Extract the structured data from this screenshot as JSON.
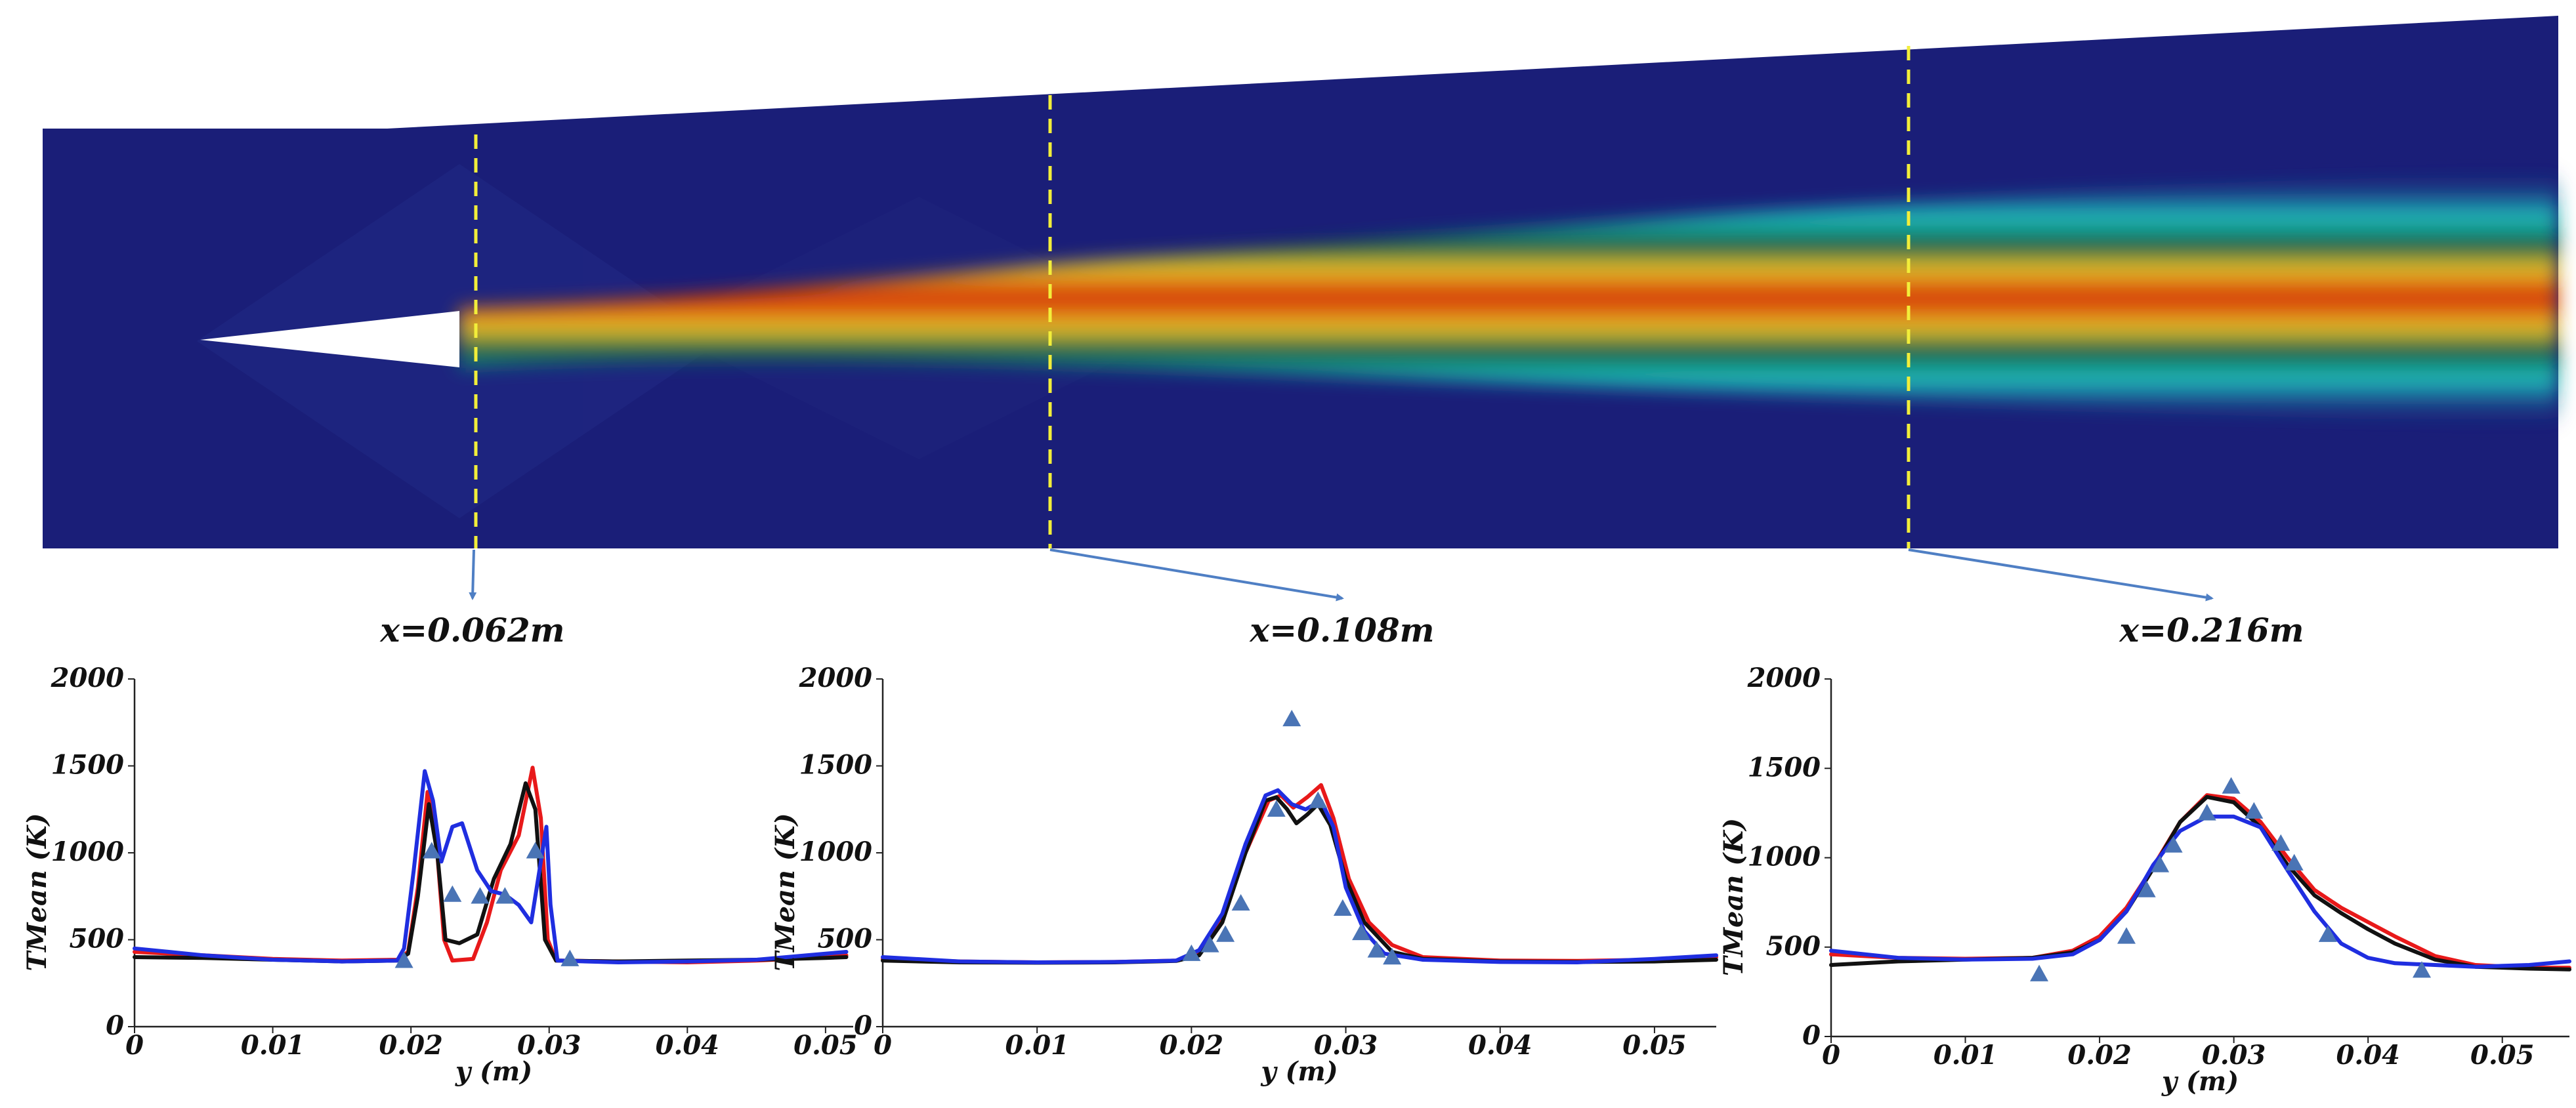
{
  "colors": {
    "background": "#1a1e78",
    "core_hot": "#d52a00",
    "shear_layer": "#1fc2c0",
    "probe_line": "#f2ee3a",
    "arrow": "#4f7fc4",
    "series_red": "#e8191a",
    "series_black": "#111111",
    "series_blue": "#1f2ee0",
    "markers": "#4a74b5"
  },
  "contour": {
    "field": "TMean temperature contour",
    "probe_lines": [
      {
        "label": "x=0.062m"
      },
      {
        "label": "x=0.108m"
      },
      {
        "label": "x=0.216m"
      }
    ]
  },
  "chart_data": [
    {
      "type": "line",
      "title": "x=0.062m",
      "xlabel": "y (m)",
      "ylabel": "TMean (K)",
      "xlim": [
        0,
        0.052
      ],
      "ylim": [
        0,
        2000
      ],
      "xticks": [
        0,
        0.01,
        0.02,
        0.03,
        0.04,
        0.05
      ],
      "xtick_labels": [
        "0",
        "0.01",
        "0.02",
        "0.03",
        "0.04",
        "0.05"
      ],
      "yticks": [
        0,
        500,
        1000,
        1500,
        2000
      ],
      "ytick_labels": [
        "0",
        "500",
        "1000",
        "1500",
        "2000"
      ],
      "series": [
        {
          "name": "red",
          "color": "#e8191a",
          "points": [
            [
              0,
              430
            ],
            [
              0.005,
              410
            ],
            [
              0.01,
              390
            ],
            [
              0.015,
              380
            ],
            [
              0.019,
              385
            ],
            [
              0.0198,
              430
            ],
            [
              0.0205,
              800
            ],
            [
              0.0212,
              1350
            ],
            [
              0.0218,
              1100
            ],
            [
              0.0224,
              500
            ],
            [
              0.023,
              380
            ],
            [
              0.0245,
              390
            ],
            [
              0.0255,
              600
            ],
            [
              0.0265,
              900
            ],
            [
              0.0278,
              1100
            ],
            [
              0.0288,
              1490
            ],
            [
              0.0294,
              1200
            ],
            [
              0.0299,
              500
            ],
            [
              0.0305,
              380
            ],
            [
              0.035,
              375
            ],
            [
              0.04,
              370
            ],
            [
              0.045,
              380
            ],
            [
              0.05,
              400
            ],
            [
              0.0515,
              410
            ]
          ]
        },
        {
          "name": "black",
          "color": "#111111",
          "points": [
            [
              0,
              400
            ],
            [
              0.005,
              395
            ],
            [
              0.01,
              385
            ],
            [
              0.015,
              375
            ],
            [
              0.019,
              380
            ],
            [
              0.0198,
              420
            ],
            [
              0.0205,
              750
            ],
            [
              0.0213,
              1280
            ],
            [
              0.0219,
              1000
            ],
            [
              0.0225,
              500
            ],
            [
              0.0235,
              480
            ],
            [
              0.0248,
              530
            ],
            [
              0.026,
              850
            ],
            [
              0.0272,
              1050
            ],
            [
              0.0283,
              1400
            ],
            [
              0.029,
              1250
            ],
            [
              0.0297,
              500
            ],
            [
              0.0305,
              380
            ],
            [
              0.035,
              375
            ],
            [
              0.04,
              380
            ],
            [
              0.045,
              385
            ],
            [
              0.05,
              395
            ],
            [
              0.0515,
              400
            ]
          ]
        },
        {
          "name": "blue",
          "color": "#1f2ee0",
          "points": [
            [
              0,
              450
            ],
            [
              0.005,
              410
            ],
            [
              0.01,
              385
            ],
            [
              0.015,
              375
            ],
            [
              0.019,
              380
            ],
            [
              0.0195,
              450
            ],
            [
              0.0202,
              900
            ],
            [
              0.021,
              1470
            ],
            [
              0.0216,
              1300
            ],
            [
              0.0222,
              950
            ],
            [
              0.023,
              1150
            ],
            [
              0.0237,
              1170
            ],
            [
              0.0248,
              900
            ],
            [
              0.0258,
              780
            ],
            [
              0.0268,
              760
            ],
            [
              0.0278,
              700
            ],
            [
              0.0287,
              600
            ],
            [
              0.0295,
              1000
            ],
            [
              0.0298,
              1150
            ],
            [
              0.0301,
              700
            ],
            [
              0.0306,
              380
            ],
            [
              0.035,
              370
            ],
            [
              0.04,
              375
            ],
            [
              0.045,
              385
            ],
            [
              0.05,
              420
            ],
            [
              0.0515,
              430
            ]
          ]
        }
      ],
      "markers": [
        [
          0.0195,
          380
        ],
        [
          0.0215,
          1010
        ],
        [
          0.023,
          760
        ],
        [
          0.025,
          750
        ],
        [
          0.0268,
          750
        ],
        [
          0.029,
          1010
        ],
        [
          0.0315,
          390
        ]
      ]
    },
    {
      "type": "line",
      "title": "x=0.108m",
      "xlabel": "y (m)",
      "ylabel": "TMean (K)",
      "xlim": [
        0,
        0.054
      ],
      "ylim": [
        0,
        2000
      ],
      "xticks": [
        0,
        0.01,
        0.02,
        0.03,
        0.04,
        0.05
      ],
      "xtick_labels": [
        "0",
        "0.01",
        "0.02",
        "0.03",
        "0.04",
        "0.05"
      ],
      "yticks": [
        0,
        500,
        1000,
        1500,
        2000
      ],
      "ytick_labels": [
        "0",
        "500",
        "1000",
        "1500",
        "2000"
      ],
      "series": [
        {
          "name": "red",
          "color": "#e8191a",
          "points": [
            [
              0,
              390
            ],
            [
              0.005,
              375
            ],
            [
              0.01,
              370
            ],
            [
              0.015,
              372
            ],
            [
              0.019,
              380
            ],
            [
              0.0205,
              420
            ],
            [
              0.022,
              620
            ],
            [
              0.0235,
              1000
            ],
            [
              0.025,
              1300
            ],
            [
              0.0258,
              1330
            ],
            [
              0.0266,
              1260
            ],
            [
              0.0275,
              1320
            ],
            [
              0.0284,
              1390
            ],
            [
              0.0292,
              1200
            ],
            [
              0.0302,
              850
            ],
            [
              0.0315,
              600
            ],
            [
              0.033,
              470
            ],
            [
              0.035,
              400
            ],
            [
              0.04,
              380
            ],
            [
              0.045,
              378
            ],
            [
              0.05,
              385
            ],
            [
              0.054,
              400
            ]
          ]
        },
        {
          "name": "black",
          "color": "#111111",
          "points": [
            [
              0,
              380
            ],
            [
              0.005,
              370
            ],
            [
              0.01,
              368
            ],
            [
              0.015,
              370
            ],
            [
              0.019,
              378
            ],
            [
              0.0205,
              410
            ],
            [
              0.022,
              600
            ],
            [
              0.0235,
              1000
            ],
            [
              0.0248,
              1300
            ],
            [
              0.0255,
              1320
            ],
            [
              0.0262,
              1250
            ],
            [
              0.0268,
              1170
            ],
            [
              0.0275,
              1220
            ],
            [
              0.0282,
              1280
            ],
            [
              0.029,
              1160
            ],
            [
              0.03,
              850
            ],
            [
              0.0312,
              600
            ],
            [
              0.033,
              430
            ],
            [
              0.035,
              390
            ],
            [
              0.04,
              375
            ],
            [
              0.045,
              372
            ],
            [
              0.05,
              375
            ],
            [
              0.054,
              385
            ]
          ]
        },
        {
          "name": "blue",
          "color": "#1f2ee0",
          "points": [
            [
              0,
              400
            ],
            [
              0.005,
              375
            ],
            [
              0.01,
              370
            ],
            [
              0.015,
              372
            ],
            [
              0.019,
              380
            ],
            [
              0.0205,
              440
            ],
            [
              0.022,
              650
            ],
            [
              0.0235,
              1050
            ],
            [
              0.0248,
              1330
            ],
            [
              0.0256,
              1360
            ],
            [
              0.0265,
              1280
            ],
            [
              0.0274,
              1250
            ],
            [
              0.0284,
              1300
            ],
            [
              0.0292,
              1150
            ],
            [
              0.03,
              800
            ],
            [
              0.0312,
              550
            ],
            [
              0.0325,
              420
            ],
            [
              0.035,
              385
            ],
            [
              0.04,
              372
            ],
            [
              0.045,
              370
            ],
            [
              0.05,
              390
            ],
            [
              0.054,
              410
            ]
          ]
        }
      ],
      "markers": [
        [
          0.02,
          420
        ],
        [
          0.0212,
          470
        ],
        [
          0.0222,
          530
        ],
        [
          0.0232,
          710
        ],
        [
          0.0255,
          1250
        ],
        [
          0.0265,
          1770
        ],
        [
          0.0282,
          1300
        ],
        [
          0.0298,
          680
        ],
        [
          0.031,
          540
        ],
        [
          0.032,
          440
        ],
        [
          0.033,
          400
        ]
      ]
    },
    {
      "type": "line",
      "title": "x=0.216m",
      "xlabel": "y (m)",
      "ylabel": "TMean (K)",
      "xlim": [
        0,
        0.055
      ],
      "ylim": [
        0,
        2000
      ],
      "xticks": [
        0,
        0.01,
        0.02,
        0.03,
        0.04,
        0.05
      ],
      "xtick_labels": [
        "0",
        "0.01",
        "0.02",
        "0.03",
        "0.04",
        "0.05"
      ],
      "yticks": [
        0,
        500,
        1000,
        1500,
        2000
      ],
      "ytick_labels": [
        "0",
        "500",
        "1000",
        "1500",
        "2000"
      ],
      "series": [
        {
          "name": "red",
          "color": "#e8191a",
          "points": [
            [
              0,
              460
            ],
            [
              0.005,
              440
            ],
            [
              0.01,
              435
            ],
            [
              0.015,
              440
            ],
            [
              0.018,
              480
            ],
            [
              0.02,
              560
            ],
            [
              0.022,
              720
            ],
            [
              0.024,
              950
            ],
            [
              0.026,
              1200
            ],
            [
              0.028,
              1350
            ],
            [
              0.03,
              1330
            ],
            [
              0.032,
              1200
            ],
            [
              0.034,
              1000
            ],
            [
              0.036,
              820
            ],
            [
              0.038,
              720
            ],
            [
              0.04,
              640
            ],
            [
              0.042,
              560
            ],
            [
              0.045,
              450
            ],
            [
              0.048,
              400
            ],
            [
              0.052,
              385
            ],
            [
              0.055,
              385
            ]
          ]
        },
        {
          "name": "black",
          "color": "#111111",
          "points": [
            [
              0,
              400
            ],
            [
              0.005,
              420
            ],
            [
              0.01,
              430
            ],
            [
              0.015,
              440
            ],
            [
              0.018,
              470
            ],
            [
              0.02,
              540
            ],
            [
              0.022,
              700
            ],
            [
              0.024,
              940
            ],
            [
              0.026,
              1200
            ],
            [
              0.028,
              1340
            ],
            [
              0.03,
              1310
            ],
            [
              0.032,
              1170
            ],
            [
              0.034,
              960
            ],
            [
              0.036,
              790
            ],
            [
              0.038,
              690
            ],
            [
              0.04,
              600
            ],
            [
              0.042,
              520
            ],
            [
              0.045,
              430
            ],
            [
              0.048,
              390
            ],
            [
              0.052,
              380
            ],
            [
              0.055,
              375
            ]
          ]
        },
        {
          "name": "blue",
          "color": "#1f2ee0",
          "points": [
            [
              0,
              480
            ],
            [
              0.005,
              440
            ],
            [
              0.01,
              430
            ],
            [
              0.015,
              435
            ],
            [
              0.018,
              460
            ],
            [
              0.02,
              540
            ],
            [
              0.022,
              700
            ],
            [
              0.024,
              960
            ],
            [
              0.026,
              1150
            ],
            [
              0.028,
              1230
            ],
            [
              0.03,
              1230
            ],
            [
              0.032,
              1170
            ],
            [
              0.034,
              930
            ],
            [
              0.036,
              700
            ],
            [
              0.038,
              520
            ],
            [
              0.04,
              440
            ],
            [
              0.042,
              410
            ],
            [
              0.045,
              400
            ],
            [
              0.048,
              390
            ],
            [
              0.052,
              400
            ],
            [
              0.055,
              420
            ]
          ]
        }
      ],
      "markers": [
        [
          0.0155,
          350
        ],
        [
          0.022,
          560
        ],
        [
          0.0235,
          820
        ],
        [
          0.0245,
          960
        ],
        [
          0.0255,
          1070
        ],
        [
          0.028,
          1250
        ],
        [
          0.0298,
          1400
        ],
        [
          0.0315,
          1260
        ],
        [
          0.0335,
          1080
        ],
        [
          0.0345,
          970
        ],
        [
          0.037,
          570
        ],
        [
          0.044,
          370
        ]
      ]
    }
  ]
}
